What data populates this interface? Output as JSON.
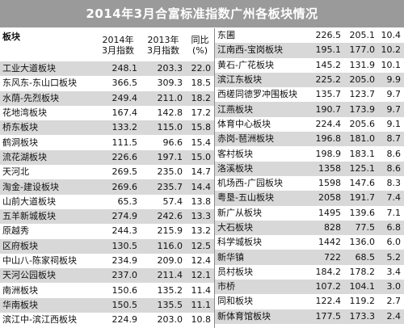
{
  "title": "2014年3月合富标准指数广州各板块情况",
  "header": {
    "block": "板块",
    "col2014": "2014年 3月指数",
    "col2013": "2013年 3月指数",
    "yoy": "同比 (%)"
  },
  "left_rows": [
    {
      "name": "工业大道板块",
      "v2014": "248.1",
      "v2013": "203.3",
      "yoy": "22.0"
    },
    {
      "name": "东风东-东山口板块",
      "v2014": "366.5",
      "v2013": "309.3",
      "yoy": "18.5"
    },
    {
      "name": "水荫-先烈板块",
      "v2014": "249.4",
      "v2013": "211.0",
      "yoy": "18.2"
    },
    {
      "name": "花地湾板块",
      "v2014": "167.4",
      "v2013": "142.8",
      "yoy": "17.2"
    },
    {
      "name": "桥东板块",
      "v2014": "133.2",
      "v2013": "115.0",
      "yoy": "15.8"
    },
    {
      "name": "鹤洞板块",
      "v2014": "111.5",
      "v2013": "96.6",
      "yoy": "15.4"
    },
    {
      "name": "流花湖板块",
      "v2014": "226.6",
      "v2013": "197.1",
      "yoy": "15.0"
    },
    {
      "name": "天河北",
      "v2014": "269.5",
      "v2013": "235.0",
      "yoy": "14.7"
    },
    {
      "name": "淘金-建设板块",
      "v2014": "269.6",
      "v2013": "235.7",
      "yoy": "14.4"
    },
    {
      "name": "山前大道板块",
      "v2014": "65.3",
      "v2013": "57.4",
      "yoy": "13.8"
    },
    {
      "name": "五羊新城板块",
      "v2014": "274.9",
      "v2013": "242.6",
      "yoy": "13.3"
    },
    {
      "name": "原越秀",
      "v2014": "244.3",
      "v2013": "215.9",
      "yoy": "13.2"
    },
    {
      "name": "区府板块",
      "v2014": "130.5",
      "v2013": "116.0",
      "yoy": "12.5"
    },
    {
      "name": "中山八-陈家祠板块",
      "v2014": "234.9",
      "v2013": "209.0",
      "yoy": "12.4"
    },
    {
      "name": "天河公园板块",
      "v2014": "237.0",
      "v2013": "211.4",
      "yoy": "12.1"
    },
    {
      "name": "南洲板块",
      "v2014": "150.6",
      "v2013": "135.2",
      "yoy": "11.4"
    },
    {
      "name": "华南板块",
      "v2014": "150.5",
      "v2013": "135.5",
      "yoy": "11.1"
    },
    {
      "name": "滨江中-滨江西板块",
      "v2014": "224.9",
      "v2013": "203.0",
      "yoy": "10.8"
    }
  ],
  "right_rows": [
    {
      "name": "东圃",
      "v2014": "226.5",
      "v2013": "205.1",
      "yoy": "10.4"
    },
    {
      "name": "江南西-宝岗板块",
      "v2014": "195.1",
      "v2013": "177.0",
      "yoy": "10.2"
    },
    {
      "name": "黄石-广花板块",
      "v2014": "145.2",
      "v2013": "131.9",
      "yoy": "10.1"
    },
    {
      "name": "滨江东板块",
      "v2014": "225.2",
      "v2013": "205.0",
      "yoy": "9.9"
    },
    {
      "name": "西槎同德罗冲围板块",
      "v2014": "135.7",
      "v2013": "123.7",
      "yoy": "9.7"
    },
    {
      "name": "江燕板块",
      "v2014": "190.7",
      "v2013": "173.9",
      "yoy": "9.7"
    },
    {
      "name": "体育中心板块",
      "v2014": "224.4",
      "v2013": "205.6",
      "yoy": "9.1"
    },
    {
      "name": "赤岗-琶洲板块",
      "v2014": "196.8",
      "v2013": "181.0",
      "yoy": "8.7"
    },
    {
      "name": "客村板块",
      "v2014": "198.9",
      "v2013": "183.1",
      "yoy": "8.6"
    },
    {
      "name": "洛溪板块",
      "v2014": "1358",
      "v2013": "125.1",
      "yoy": "8.6"
    },
    {
      "name": "机场西-广园板块",
      "v2014": "1598",
      "v2013": "147.6",
      "yoy": "8.3"
    },
    {
      "name": "粤垦-五山板块",
      "v2014": "2058",
      "v2013": "191.7",
      "yoy": "7.4"
    },
    {
      "name": "新广从板块",
      "v2014": "1495",
      "v2013": "139.6",
      "yoy": "7.1"
    },
    {
      "name": "大石板块",
      "v2014": "828",
      "v2013": "77.5",
      "yoy": "6.8"
    },
    {
      "name": "科学城板块",
      "v2014": "1442",
      "v2013": "136.0",
      "yoy": "6.0"
    },
    {
      "name": "新华镇",
      "v2014": "722",
      "v2013": "68.5",
      "yoy": "5.2"
    },
    {
      "name": "员村板块",
      "v2014": "184.2",
      "v2013": "178.2",
      "yoy": "3.4"
    },
    {
      "name": "市桥",
      "v2014": "107.2",
      "v2013": "104.1",
      "yoy": "3.0"
    },
    {
      "name": "同和板块",
      "v2014": "122.4",
      "v2013": "119.2",
      "yoy": "2.7"
    },
    {
      "name": "新体育馆板块",
      "v2014": "177.5",
      "v2013": "173.3",
      "yoy": "2.4"
    }
  ]
}
